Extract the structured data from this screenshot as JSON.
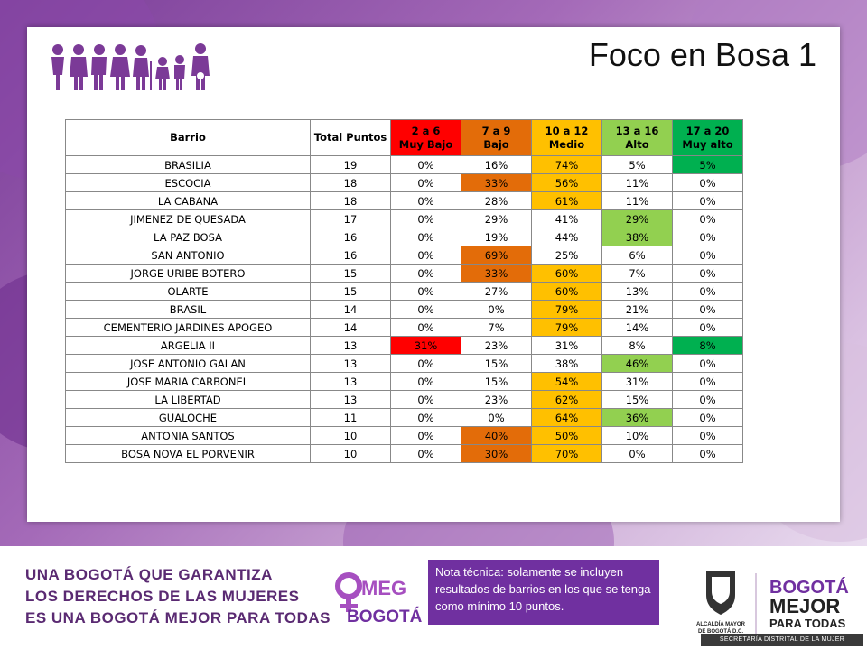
{
  "slide": {
    "title": "Foco en Bosa 1"
  },
  "table": {
    "headers": {
      "barrio": "Barrio",
      "total": "Total Puntos",
      "r1": [
        "2 a 6",
        "Muy Bajo"
      ],
      "r2": [
        "7 a 9",
        "Bajo"
      ],
      "r3": [
        "10 a 12",
        "Medio"
      ],
      "r4": [
        "13 a 16",
        "Alto"
      ],
      "r5": [
        "17 a 20",
        "Muy alto"
      ]
    },
    "rows": [
      {
        "barrio": "BRASILIA",
        "total": "19",
        "v": [
          "0%",
          "16%",
          "74%",
          "5%",
          "5%"
        ],
        "hl": [
          0,
          0,
          3,
          0,
          5
        ]
      },
      {
        "barrio": "ESCOCIA",
        "total": "18",
        "v": [
          "0%",
          "33%",
          "56%",
          "11%",
          "0%"
        ],
        "hl": [
          0,
          2,
          3,
          0,
          0
        ]
      },
      {
        "barrio": "LA CABANA",
        "total": "18",
        "v": [
          "0%",
          "28%",
          "61%",
          "11%",
          "0%"
        ],
        "hl": [
          0,
          0,
          3,
          0,
          0
        ]
      },
      {
        "barrio": "JIMENEZ DE QUESADA",
        "total": "17",
        "v": [
          "0%",
          "29%",
          "41%",
          "29%",
          "0%"
        ],
        "hl": [
          0,
          0,
          0,
          4,
          0
        ]
      },
      {
        "barrio": "LA PAZ BOSA",
        "total": "16",
        "v": [
          "0%",
          "19%",
          "44%",
          "38%",
          "0%"
        ],
        "hl": [
          0,
          0,
          0,
          4,
          0
        ]
      },
      {
        "barrio": "SAN ANTONIO",
        "total": "16",
        "v": [
          "0%",
          "69%",
          "25%",
          "6%",
          "0%"
        ],
        "hl": [
          0,
          2,
          0,
          0,
          0
        ]
      },
      {
        "barrio": "JORGE URIBE BOTERO",
        "total": "15",
        "v": [
          "0%",
          "33%",
          "60%",
          "7%",
          "0%"
        ],
        "hl": [
          0,
          2,
          3,
          0,
          0
        ]
      },
      {
        "barrio": "OLARTE",
        "total": "15",
        "v": [
          "0%",
          "27%",
          "60%",
          "13%",
          "0%"
        ],
        "hl": [
          0,
          0,
          3,
          0,
          0
        ]
      },
      {
        "barrio": "BRASIL",
        "total": "14",
        "v": [
          "0%",
          "0%",
          "79%",
          "21%",
          "0%"
        ],
        "hl": [
          0,
          0,
          3,
          0,
          0
        ]
      },
      {
        "barrio": "CEMENTERIO JARDINES APOGEO",
        "total": "14",
        "v": [
          "0%",
          "7%",
          "79%",
          "14%",
          "0%"
        ],
        "hl": [
          0,
          0,
          3,
          0,
          0
        ]
      },
      {
        "barrio": "ARGELIA II",
        "total": "13",
        "v": [
          "31%",
          "23%",
          "31%",
          "8%",
          "8%"
        ],
        "hl": [
          1,
          0,
          0,
          0,
          5
        ]
      },
      {
        "barrio": "JOSE ANTONIO GALAN",
        "total": "13",
        "v": [
          "0%",
          "15%",
          "38%",
          "46%",
          "0%"
        ],
        "hl": [
          0,
          0,
          0,
          4,
          0
        ]
      },
      {
        "barrio": "JOSE MARIA CARBONEL",
        "total": "13",
        "v": [
          "0%",
          "15%",
          "54%",
          "31%",
          "0%"
        ],
        "hl": [
          0,
          0,
          3,
          0,
          0
        ]
      },
      {
        "barrio": "LA LIBERTAD",
        "total": "13",
        "v": [
          "0%",
          "23%",
          "62%",
          "15%",
          "0%"
        ],
        "hl": [
          0,
          0,
          3,
          0,
          0
        ]
      },
      {
        "barrio": "GUALOCHE",
        "total": "11",
        "v": [
          "0%",
          "0%",
          "64%",
          "36%",
          "0%"
        ],
        "hl": [
          0,
          0,
          3,
          4,
          0
        ]
      },
      {
        "barrio": "ANTONIA SANTOS",
        "total": "10",
        "v": [
          "0%",
          "40%",
          "50%",
          "10%",
          "0%"
        ],
        "hl": [
          0,
          2,
          3,
          0,
          0
        ]
      },
      {
        "barrio": "BOSA NOVA EL PORVENIR",
        "total": "10",
        "v": [
          "0%",
          "30%",
          "70%",
          "0%",
          "0%"
        ],
        "hl": [
          0,
          2,
          3,
          0,
          0
        ]
      }
    ]
  },
  "footer": {
    "slogan": [
      "UNA BOGOTÁ QUE GARANTIZA",
      "LOS DERECHOS DE LAS MUJERES",
      "ES UNA BOGOTÁ MEJOR PARA TODAS"
    ],
    "nota": "Nota técnica: solamente se incluyen resultados de barrios en los que se tenga como mínimo 10 puntos.",
    "omeg_logo": "OMEG BOGOTÁ",
    "alcaldia_logo": "ALCALDÍA MAYOR DE BOGOTÁ D.C.",
    "bogota_logo": "BOGOTÁ MEJOR PARA TODAS",
    "secretaria": "SECRETARÍA DISTRITAL DE LA MUJER"
  },
  "colors": {
    "muy_bajo": "#ff0000",
    "bajo": "#e36c09",
    "medio": "#ffc000",
    "alto": "#92d050",
    "muy_alto": "#00b050",
    "brand_purple": "#7030a0"
  },
  "icons": {
    "family": "women-family-icon"
  }
}
